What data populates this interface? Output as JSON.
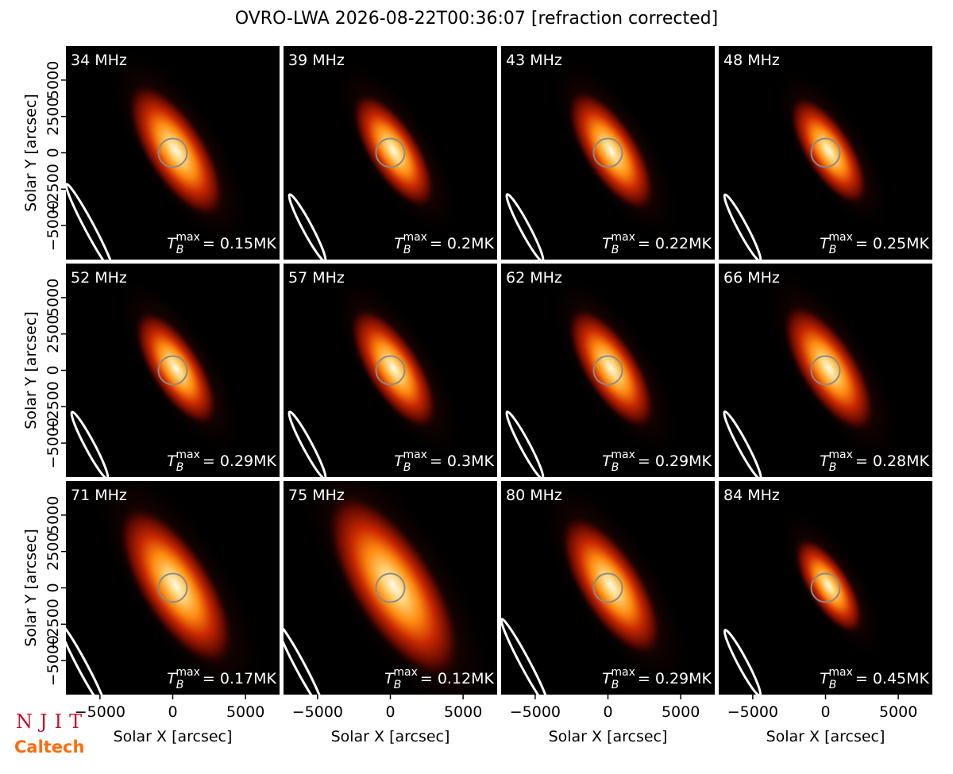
{
  "figure": {
    "title": "OVRO-LWA 2026-08-22T00:36:07 [refraction corrected]",
    "logos": [
      "NJIT",
      "Caltech"
    ]
  },
  "chart_data": [
    {
      "type": "image",
      "label": "34 MHz",
      "annotation": {
        "symbol": "T",
        "sub": "B",
        "sup": "max",
        "text": "= 0.15MK"
      },
      "xlim": [
        -7340,
        7340
      ],
      "ylim": [
        -7340,
        7340
      ],
      "ylabel": "Solar Y [arcsec]",
      "yticks": [
        {
          "value": -5000,
          "label": "−5000"
        },
        {
          "value": -2500,
          "label": "−2500"
        },
        0,
        2500,
        5000
      ]
    },
    {
      "type": "image",
      "label": "39 MHz",
      "annotation": {
        "symbol": "T",
        "sub": "B",
        "sup": "max",
        "text": "= 0.2MK"
      },
      "xlim": [
        -7340,
        7340
      ],
      "ylim": [
        -7340,
        7340
      ]
    },
    {
      "type": "image",
      "label": "43 MHz",
      "annotation": {
        "symbol": "T",
        "sub": "B",
        "sup": "max",
        "text": "= 0.22MK"
      },
      "xlim": [
        -7340,
        7340
      ],
      "ylim": [
        -7340,
        7340
      ]
    },
    {
      "type": "image",
      "label": "48 MHz",
      "annotation": {
        "symbol": "T",
        "sub": "B",
        "sup": "max",
        "text": "= 0.25MK"
      },
      "xlim": [
        -7340,
        7340
      ],
      "ylim": [
        -7340,
        7340
      ]
    },
    {
      "type": "image",
      "label": "52 MHz",
      "annotation": {
        "symbol": "T",
        "sub": "B",
        "sup": "max",
        "text": "= 0.29MK"
      },
      "xlim": [
        -7340,
        7340
      ],
      "ylim": [
        -7340,
        7340
      ],
      "ylabel": "Solar Y [arcsec]",
      "yticks": [
        {
          "value": -5000,
          "label": "−5000"
        },
        {
          "value": -2500,
          "label": "−2500"
        },
        0,
        2500,
        5000
      ]
    },
    {
      "type": "image",
      "label": "57 MHz",
      "annotation": {
        "symbol": "T",
        "sub": "B",
        "sup": "max",
        "text": "= 0.3MK"
      },
      "xlim": [
        -7340,
        7340
      ],
      "ylim": [
        -7340,
        7340
      ]
    },
    {
      "type": "image",
      "label": "62 MHz",
      "annotation": {
        "symbol": "T",
        "sub": "B",
        "sup": "max",
        "text": "= 0.29MK"
      },
      "xlim": [
        -7340,
        7340
      ],
      "ylim": [
        -7340,
        7340
      ]
    },
    {
      "type": "image",
      "label": "66 MHz",
      "annotation": {
        "symbol": "T",
        "sub": "B",
        "sup": "max",
        "text": "= 0.28MK"
      },
      "xlim": [
        -7340,
        7340
      ],
      "ylim": [
        -7340,
        7340
      ]
    },
    {
      "type": "image",
      "label": "71 MHz",
      "annotation": {
        "symbol": "T",
        "sub": "B",
        "sup": "max",
        "text": "= 0.17MK"
      },
      "xlim": [
        -7340,
        7340
      ],
      "ylim": [
        -7340,
        7340
      ],
      "ylabel": "Solar Y [arcsec]",
      "yticks": [
        {
          "value": -5000,
          "label": "−5000"
        },
        {
          "value": -2500,
          "label": "−2500"
        },
        0,
        2500,
        5000
      ],
      "xlabel": "Solar X [arcsec]",
      "xticks": [
        {
          "value": -5000,
          "label": "−5000"
        },
        0,
        5000
      ]
    },
    {
      "type": "image",
      "label": "75 MHz",
      "annotation": {
        "symbol": "T",
        "sub": "B",
        "sup": "max",
        "text": "= 0.12MK"
      },
      "xlim": [
        -7340,
        7340
      ],
      "ylim": [
        -7340,
        7340
      ],
      "xlabel": "Solar X [arcsec]",
      "xticks": [
        {
          "value": -5000,
          "label": "−5000"
        },
        0,
        5000
      ]
    },
    {
      "type": "image",
      "label": "80 MHz",
      "annotation": {
        "symbol": "T",
        "sub": "B",
        "sup": "max",
        "text": "= 0.29MK"
      },
      "xlim": [
        -7340,
        7340
      ],
      "ylim": [
        -7340,
        7340
      ],
      "xlabel": "Solar X [arcsec]",
      "xticks": [
        {
          "value": -5000,
          "label": "−5000"
        },
        0,
        5000
      ]
    },
    {
      "type": "image",
      "label": "84 MHz",
      "annotation": {
        "symbol": "T",
        "sub": "B",
        "sup": "max",
        "text": "= 0.45MK"
      },
      "xlim": [
        -7340,
        7340
      ],
      "ylim": [
        -7340,
        7340
      ],
      "xlabel": "Solar X [arcsec]",
      "xticks": [
        {
          "value": -5000,
          "label": "−5000"
        },
        0,
        5000
      ]
    }
  ]
}
